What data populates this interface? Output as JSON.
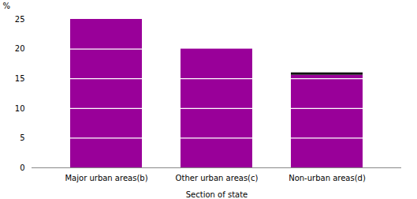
{
  "chart_data": {
    "type": "bar",
    "categories": [
      "Major urban areas(b)",
      "Other urban areas(c)",
      "Non-urban areas(d)"
    ],
    "xlabel": "Section of state",
    "ylabel": "%",
    "series": [
      {
        "color": "#990099",
        "values": [
          25,
          20,
          15.6
        ]
      },
      {
        "color": "#111111",
        "values": [
          null,
          null,
          0.4
        ]
      }
    ],
    "stacked": true,
    "segment_lines": [
      5,
      10,
      15,
      20
    ],
    "ylim": [
      0,
      25
    ],
    "yticks": [
      0,
      5,
      10,
      15,
      20,
      25
    ],
    "grid": false
  }
}
